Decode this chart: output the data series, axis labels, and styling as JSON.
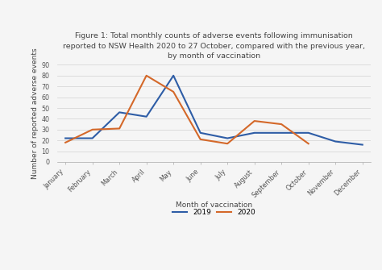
{
  "title": "Figure 1: Total monthly counts of adverse events following immunisation\nreported to NSW Health 2020 to 27 October, compared with the previous year,\nby month of vaccination",
  "xlabel": "Month of vaccination",
  "ylabel": "Number of reported adverse events",
  "months": [
    "January",
    "February",
    "March",
    "April",
    "May",
    "June",
    "July",
    "August",
    "September",
    "October",
    "November",
    "December"
  ],
  "data_2019": [
    22,
    22,
    46,
    42,
    80,
    27,
    22,
    27,
    27,
    27,
    19,
    16
  ],
  "data_2020": [
    18,
    30,
    31,
    80,
    65,
    21,
    17,
    38,
    35,
    17,
    null,
    null
  ],
  "color_2019": "#2E5DA6",
  "color_2020": "#D46829",
  "ylim": [
    0,
    90
  ],
  "yticks": [
    0,
    10,
    20,
    30,
    40,
    50,
    60,
    70,
    80,
    90
  ],
  "background_color": "#f5f5f5",
  "plot_bg_color": "#f5f5f5",
  "grid_color": "#d8d8d8",
  "title_fontsize": 6.8,
  "axis_label_fontsize": 6.5,
  "tick_fontsize": 5.8,
  "legend_fontsize": 6.5,
  "linewidth": 1.5
}
